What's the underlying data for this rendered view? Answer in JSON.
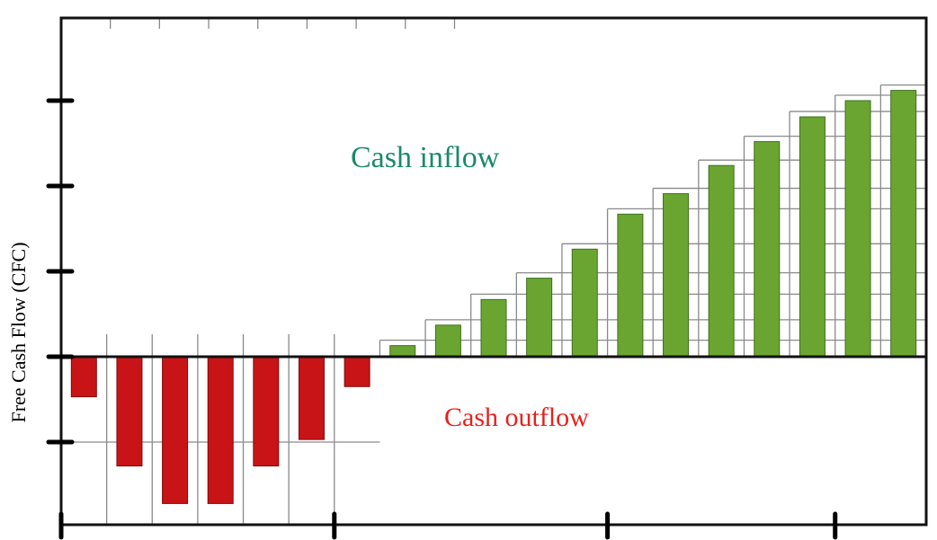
{
  "chart_data": {
    "type": "bar",
    "title": "",
    "xlabel": "",
    "ylabel": "Free Cash Flow (CFC)",
    "ylim": [
      -2,
      3.1
    ],
    "grid": true,
    "legend": "none",
    "values": [
      -0.47,
      -1.28,
      -1.72,
      -1.72,
      -1.28,
      -0.97,
      -0.35,
      0.13,
      0.37,
      0.67,
      0.92,
      1.26,
      1.67,
      1.91,
      2.24,
      2.52,
      2.81,
      3.0,
      3.12
    ],
    "colors": {
      "positive": "#6aa531",
      "negative": "#c81416"
    },
    "annotations": [
      {
        "name": "cash-inflow",
        "text": "Cash inflow",
        "color": "#1a8a66"
      },
      {
        "name": "cash-outflow",
        "text": "Cash outflow",
        "color": "#e8201c"
      }
    ]
  }
}
